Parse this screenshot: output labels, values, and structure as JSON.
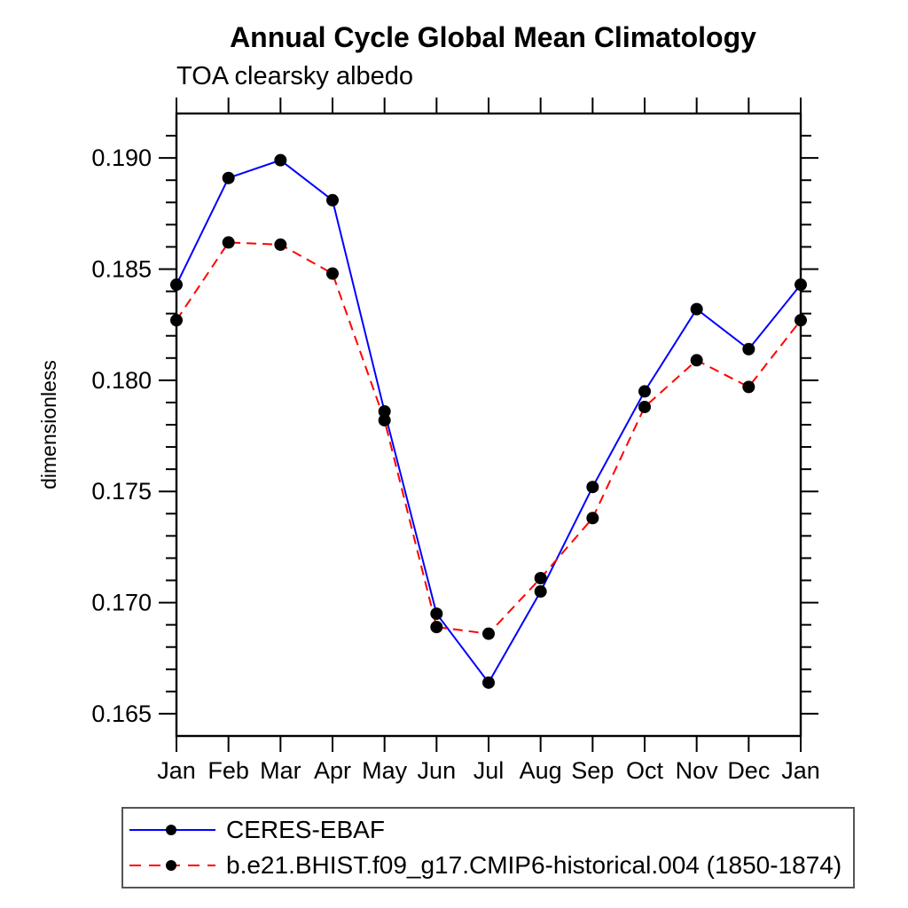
{
  "title": "Annual Cycle Global Mean Climatology",
  "subtitle": "TOA clearsky albedo",
  "chart_data": {
    "type": "line",
    "categories": [
      "Jan",
      "Feb",
      "Mar",
      "Apr",
      "May",
      "Jun",
      "Jul",
      "Aug",
      "Sep",
      "Oct",
      "Nov",
      "Dec",
      "Jan"
    ],
    "series": [
      {
        "name": "CERES-EBAF",
        "color": "#0000ff",
        "line_style": "solid",
        "marker": "filled-circle",
        "values": [
          0.1843,
          0.1891,
          0.1899,
          0.1881,
          0.1786,
          0.1695,
          0.1664,
          0.1705,
          0.1752,
          0.1795,
          0.1832,
          0.1814,
          0.1843
        ]
      },
      {
        "name": "b.e21.BHIST.f09_g17.CMIP6-historical.004 (1850-1874)",
        "color": "#ff0000",
        "line_style": "dashed",
        "marker": "filled-circle",
        "values": [
          0.1827,
          0.1862,
          0.1861,
          0.1848,
          0.1782,
          0.1689,
          0.1686,
          0.1711,
          0.1738,
          0.1788,
          0.1809,
          0.1797,
          0.1827
        ]
      }
    ],
    "xlabel": "",
    "ylabel": "dimensionless",
    "y_axis": {
      "min": 0.164,
      "max": 0.192,
      "major_tick_step": 0.005,
      "minor_tick_step": 0.001,
      "tick_labels": [
        "0.165",
        "0.170",
        "0.175",
        "0.180",
        "0.185",
        "0.190"
      ]
    },
    "marker_color": "#000000",
    "grid": false,
    "legend_position": "bottom-left"
  }
}
